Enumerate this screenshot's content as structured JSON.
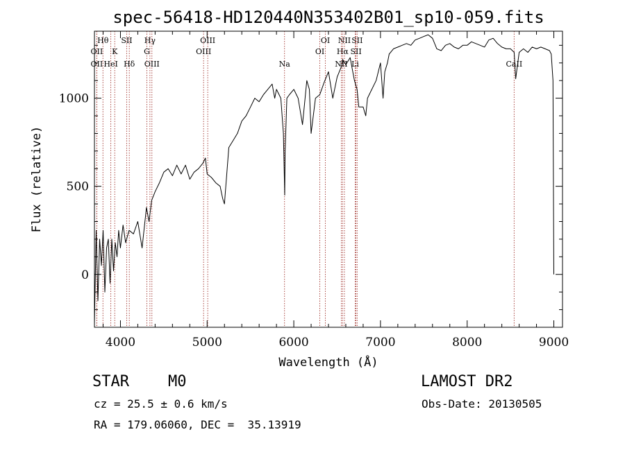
{
  "chart_data": {
    "type": "line",
    "title": "spec-56418-HD120440N353402B01_sp10-059.fits",
    "xlabel": "Wavelength (Å)",
    "ylabel": "Flux (relative)",
    "xlim": [
      3700,
      9100
    ],
    "ylim": [
      -300,
      1380
    ],
    "x_ticks": [
      4000,
      5000,
      6000,
      7000,
      8000,
      9000
    ],
    "y_ticks": [
      0,
      500,
      1000
    ],
    "grid": false,
    "legend": "none",
    "series": [
      {
        "x": [
          3700,
          3720,
          3740,
          3760,
          3780,
          3800,
          3820,
          3840,
          3860,
          3880,
          3900,
          3920,
          3940,
          3960,
          3980,
          4000,
          4030,
          4060,
          4100,
          4150,
          4200,
          4250,
          4300,
          4330,
          4360,
          4400,
          4450,
          4500,
          4550,
          4600,
          4650,
          4700,
          4750,
          4800,
          4850,
          4900,
          4950,
          4980,
          5000,
          5050,
          5100,
          5150,
          5180,
          5200,
          5250,
          5300,
          5350,
          5400,
          5450,
          5500,
          5550,
          5600,
          5650,
          5700,
          5750,
          5780,
          5800,
          5850,
          5880,
          5895,
          5900,
          5920,
          5950,
          6000,
          6050,
          6100,
          6120,
          6150,
          6180,
          6200,
          6250,
          6300,
          6350,
          6400,
          6450,
          6500,
          6550,
          6563,
          6600,
          6650,
          6700,
          6730,
          6750,
          6800,
          6830,
          6850,
          6900,
          6950,
          7000,
          7030,
          7050,
          7080,
          7100,
          7150,
          7200,
          7250,
          7300,
          7350,
          7400,
          7450,
          7500,
          7550,
          7600,
          7650,
          7700,
          7750,
          7800,
          7850,
          7900,
          7950,
          8000,
          8050,
          8100,
          8150,
          8200,
          8250,
          8300,
          8350,
          8400,
          8450,
          8500,
          8542,
          8560,
          8600,
          8650,
          8700,
          8750,
          8800,
          8850,
          8900,
          8950,
          8970,
          8990,
          9000
        ],
        "values": [
          -280,
          250,
          -150,
          200,
          50,
          250,
          -100,
          150,
          200,
          -50,
          200,
          20,
          180,
          100,
          250,
          150,
          280,
          180,
          250,
          230,
          300,
          150,
          380,
          300,
          420,
          470,
          520,
          580,
          600,
          560,
          620,
          570,
          620,
          540,
          580,
          600,
          630,
          660,
          570,
          550,
          520,
          500,
          430,
          400,
          720,
          760,
          800,
          870,
          900,
          950,
          1000,
          980,
          1020,
          1050,
          1080,
          1000,
          1050,
          1000,
          800,
          450,
          700,
          1000,
          1020,
          1050,
          1000,
          850,
          950,
          1100,
          1050,
          800,
          1000,
          1020,
          1090,
          1150,
          1000,
          1120,
          1180,
          1220,
          1190,
          1230,
          1100,
          1050,
          950,
          950,
          900,
          1000,
          1050,
          1100,
          1200,
          1000,
          1150,
          1200,
          1250,
          1280,
          1290,
          1300,
          1310,
          1300,
          1330,
          1340,
          1350,
          1360,
          1340,
          1280,
          1270,
          1300,
          1310,
          1290,
          1280,
          1300,
          1300,
          1320,
          1310,
          1300,
          1290,
          1330,
          1340,
          1310,
          1290,
          1280,
          1280,
          1260,
          1110,
          1260,
          1280,
          1260,
          1290,
          1280,
          1290,
          1280,
          1270,
          1250,
          1100,
          0
        ]
      }
    ],
    "lines": [
      {
        "label": "Hθ",
        "x": 3798,
        "row": 0
      },
      {
        "label": "OII",
        "x": 3727,
        "row": 1
      },
      {
        "label": "OII",
        "x": 3727,
        "row": 2
      },
      {
        "label": "HeI",
        "x": 3889,
        "row": 2
      },
      {
        "label": "K",
        "x": 3934,
        "row": 1
      },
      {
        "label": "SII",
        "x": 4072,
        "row": 0
      },
      {
        "label": "Hδ",
        "x": 4102,
        "row": 2
      },
      {
        "label": "Hγ",
        "x": 4340,
        "row": 0
      },
      {
        "label": "G",
        "x": 4305,
        "row": 1
      },
      {
        "label": "OIII",
        "x": 4363,
        "row": 2
      },
      {
        "label": "OIII",
        "x": 5007,
        "row": 0
      },
      {
        "label": "OIII",
        "x": 4959,
        "row": 1
      },
      {
        "label": "Na",
        "x": 5893,
        "row": 2
      },
      {
        "label": "OI",
        "x": 6364,
        "row": 0
      },
      {
        "label": "OI",
        "x": 6300,
        "row": 1
      },
      {
        "label": "NII",
        "x": 6584,
        "row": 0
      },
      {
        "label": "Hα",
        "x": 6563,
        "row": 1
      },
      {
        "label": "NII",
        "x": 6548,
        "row": 2
      },
      {
        "label": "SII",
        "x": 6731,
        "row": 0
      },
      {
        "label": "SII",
        "x": 6717,
        "row": 1
      },
      {
        "label": "Li",
        "x": 6708,
        "row": 2
      },
      {
        "label": "CaII",
        "x": 8542,
        "row": 2
      }
    ],
    "line_color": "#a0302a"
  },
  "info": {
    "class": "STAR",
    "subclass": "M0",
    "survey": "LAMOST DR2",
    "cz": "cz = 25.5 ± 0.6 km/s",
    "obs_date": "Obs-Date: 20130505",
    "radec": "RA = 179.06060, DEC =  35.13919"
  }
}
